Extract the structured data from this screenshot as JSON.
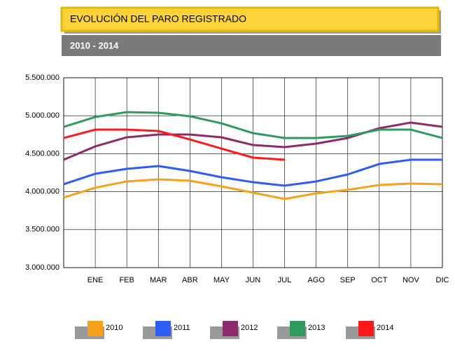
{
  "chart_data": {
    "type": "line",
    "title": "EVOLUCIÓN DEL PARO REGISTRADO",
    "subtitle": "2010 - 2014",
    "categories": [
      null,
      "ENE",
      "FEB",
      "MAR",
      "ABR",
      "MAY",
      "JUN",
      "JUL",
      "AGO",
      "SEP",
      "OCT",
      "NOV",
      "DIC"
    ],
    "series": [
      {
        "name": "2010",
        "color": "#f7a01c",
        "values": [
          3923000,
          4052000,
          4135000,
          4162000,
          4144000,
          4070000,
          3987000,
          3904000,
          3978000,
          4024000,
          4089000,
          4107000,
          4098000
        ]
      },
      {
        "name": "2011",
        "color": "#2f5cf5",
        "values": [
          4098000,
          4236000,
          4301000,
          4338000,
          4273000,
          4190000,
          4125000,
          4079000,
          4135000,
          4227000,
          4365000,
          4421000,
          4421000
        ]
      },
      {
        "name": "2012",
        "color": "#8c2a6c",
        "values": [
          4421000,
          4596000,
          4716000,
          4753000,
          4753000,
          4716000,
          4614000,
          4587000,
          4633000,
          4707000,
          4836000,
          4910000,
          4854000
        ]
      },
      {
        "name": "2013",
        "color": "#2e9a60",
        "values": [
          4854000,
          4983000,
          5048000,
          5039000,
          4993000,
          4900000,
          4771000,
          4707000,
          4707000,
          4734000,
          4817000,
          4817000,
          4707000
        ]
      },
      {
        "name": "2014",
        "color": "#ff1a1a",
        "values": [
          4707000,
          4817000,
          4817000,
          4799000,
          4688000,
          4568000,
          4448000,
          4421000,
          null,
          null,
          null,
          null,
          null
        ]
      }
    ],
    "ylim": [
      3000000,
      5500000
    ],
    "yticks": [
      {
        "value": 3000000,
        "label": "3.000.000"
      },
      {
        "value": 3500000,
        "label": "3.500.000"
      },
      {
        "value": 4000000,
        "label": "4.000.000"
      },
      {
        "value": 4500000,
        "label": "4.500.000"
      },
      {
        "value": 5000000,
        "label": "5.000.000"
      },
      {
        "value": 5500000,
        "label": "5.500.000"
      }
    ],
    "grid": true
  }
}
